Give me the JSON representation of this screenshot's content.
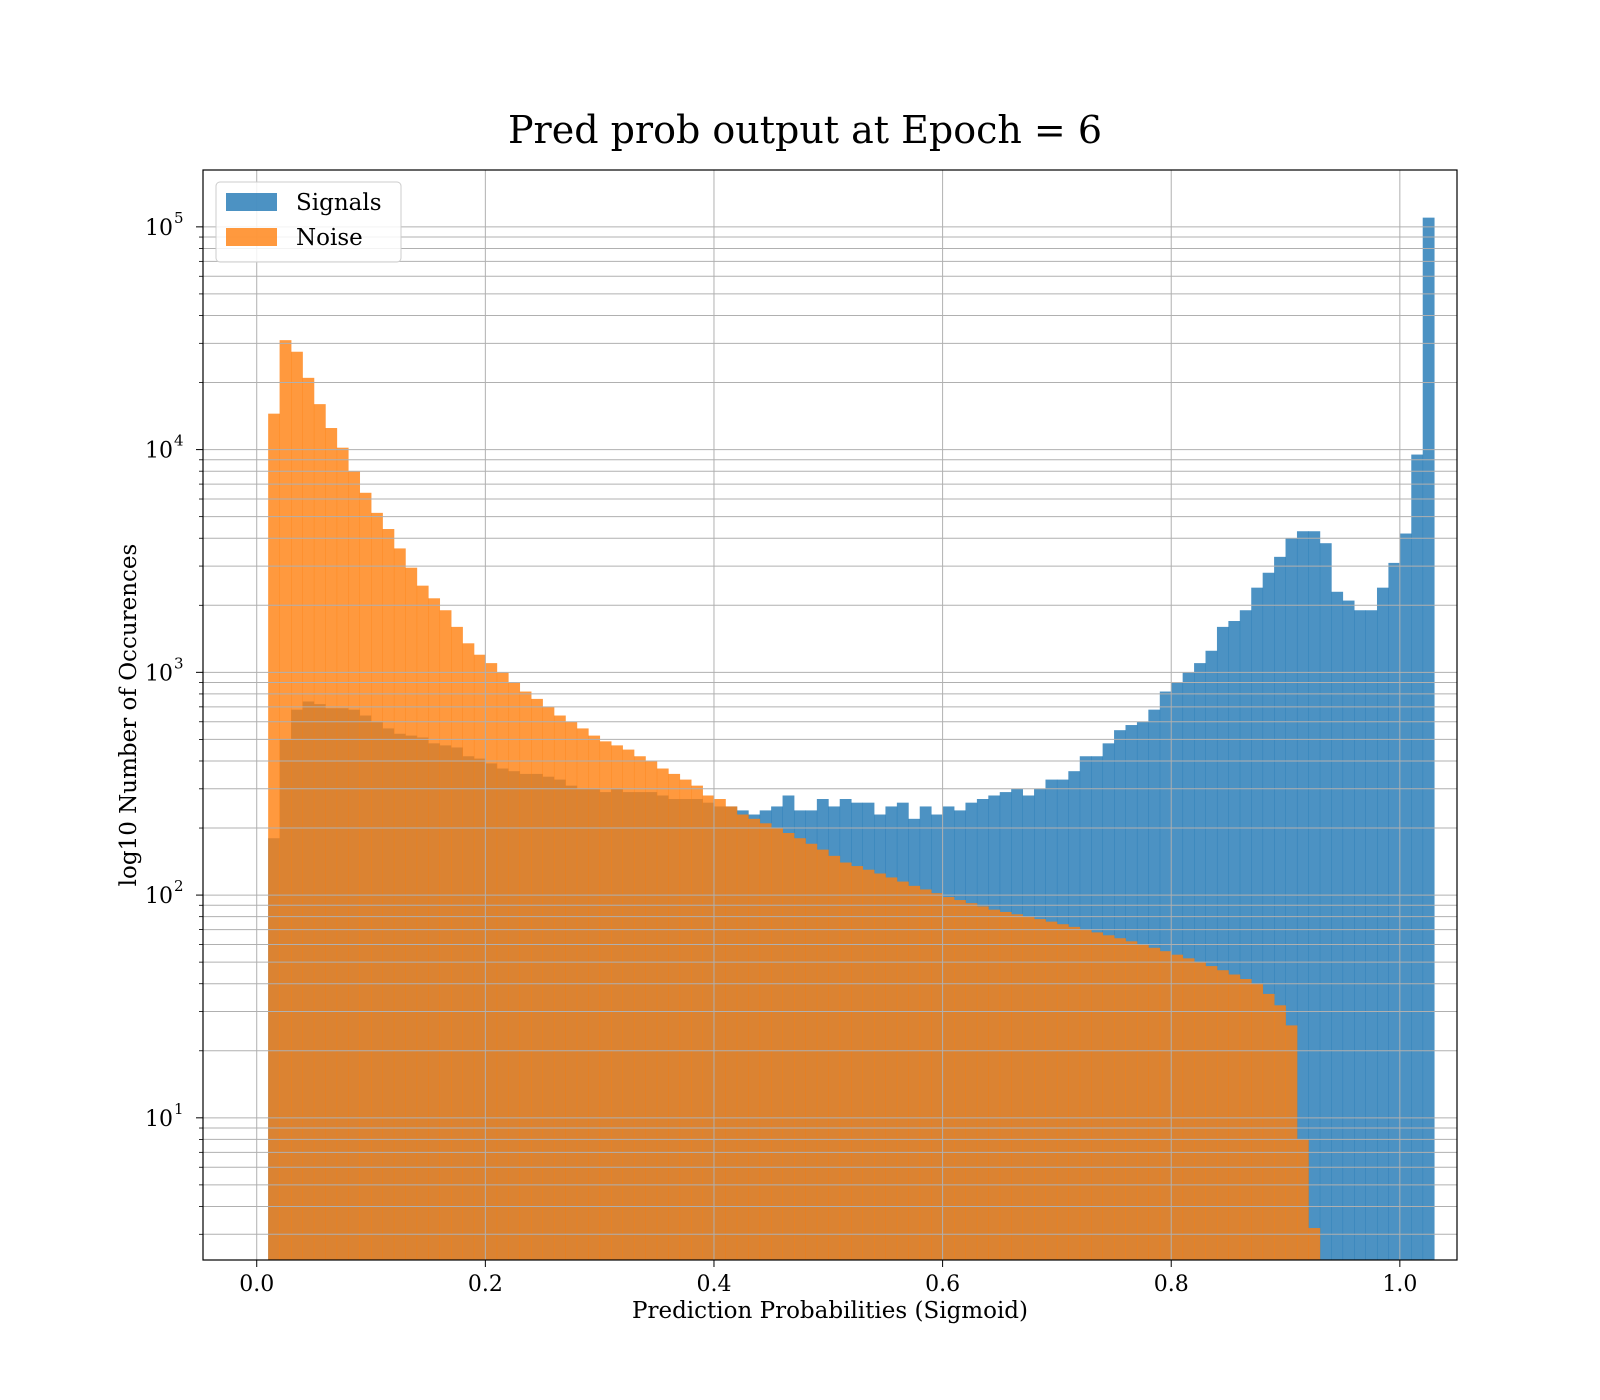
{
  "chart_data": {
    "type": "bar",
    "title": "Pred prob output at Epoch = 6",
    "xlabel": "Prediction Probabilities (Sigmoid)",
    "ylabel": "log10 Number of Occurences",
    "xlim": [
      -0.047,
      1.05
    ],
    "ylim": [
      2.3,
      180000
    ],
    "yscale": "log",
    "grid": "both, major and minor",
    "legend_position": "upper left",
    "xticks": [
      "0.0",
      "0.2",
      "0.4",
      "0.6",
      "0.8",
      "1.0"
    ],
    "yticks": [
      {
        "base": "10",
        "exp": "1"
      },
      {
        "base": "10",
        "exp": "2"
      },
      {
        "base": "10",
        "exp": "3"
      },
      {
        "base": "10",
        "exp": "4"
      },
      {
        "base": "10",
        "exp": "5"
      }
    ],
    "bin_width": 0.01,
    "series": [
      {
        "name": "Signals",
        "color": "#1f77b4",
        "bin_start": 0.0,
        "values": [
          0,
          180,
          500,
          680,
          740,
          720,
          690,
          690,
          680,
          640,
          600,
          560,
          530,
          520,
          510,
          480,
          470,
          460,
          420,
          410,
          390,
          370,
          360,
          350,
          350,
          340,
          330,
          310,
          300,
          300,
          290,
          300,
          290,
          290,
          290,
          280,
          270,
          270,
          270,
          260,
          250,
          250,
          240,
          230,
          240,
          250,
          280,
          240,
          240,
          270,
          250,
          270,
          260,
          260,
          230,
          250,
          260,
          220,
          250,
          230,
          250,
          240,
          260,
          270,
          280,
          290,
          300,
          280,
          300,
          330,
          330,
          360,
          420,
          420,
          480,
          550,
          580,
          600,
          680,
          820,
          900,
          1000,
          1100,
          1250,
          1600,
          1700,
          1900,
          2400,
          2800,
          3300,
          4000,
          4300,
          4300,
          3800,
          2300,
          2100,
          1900,
          1900,
          2400,
          3100,
          4200,
          9500,
          110000
        ]
      },
      {
        "name": "Noise",
        "color": "#ff7f0e",
        "bin_start": 0.0,
        "values": [
          0,
          14500,
          31000,
          27500,
          21000,
          16000,
          12500,
          10200,
          8000,
          6400,
          5200,
          4400,
          3600,
          2950,
          2450,
          2150,
          1900,
          1600,
          1350,
          1200,
          1100,
          1000,
          900,
          820,
          760,
          700,
          640,
          600,
          560,
          520,
          490,
          470,
          450,
          420,
          400,
          370,
          350,
          330,
          310,
          280,
          270,
          250,
          230,
          220,
          210,
          200,
          190,
          180,
          170,
          160,
          150,
          140,
          135,
          130,
          125,
          120,
          115,
          110,
          106,
          102,
          98,
          95,
          92,
          89,
          86,
          84,
          82,
          80,
          78,
          76,
          74,
          72,
          70,
          68,
          66,
          64,
          62,
          60,
          58,
          56,
          54,
          52,
          50,
          48,
          46,
          44,
          42,
          40,
          36,
          32,
          26,
          8,
          3.2
        ]
      }
    ]
  }
}
